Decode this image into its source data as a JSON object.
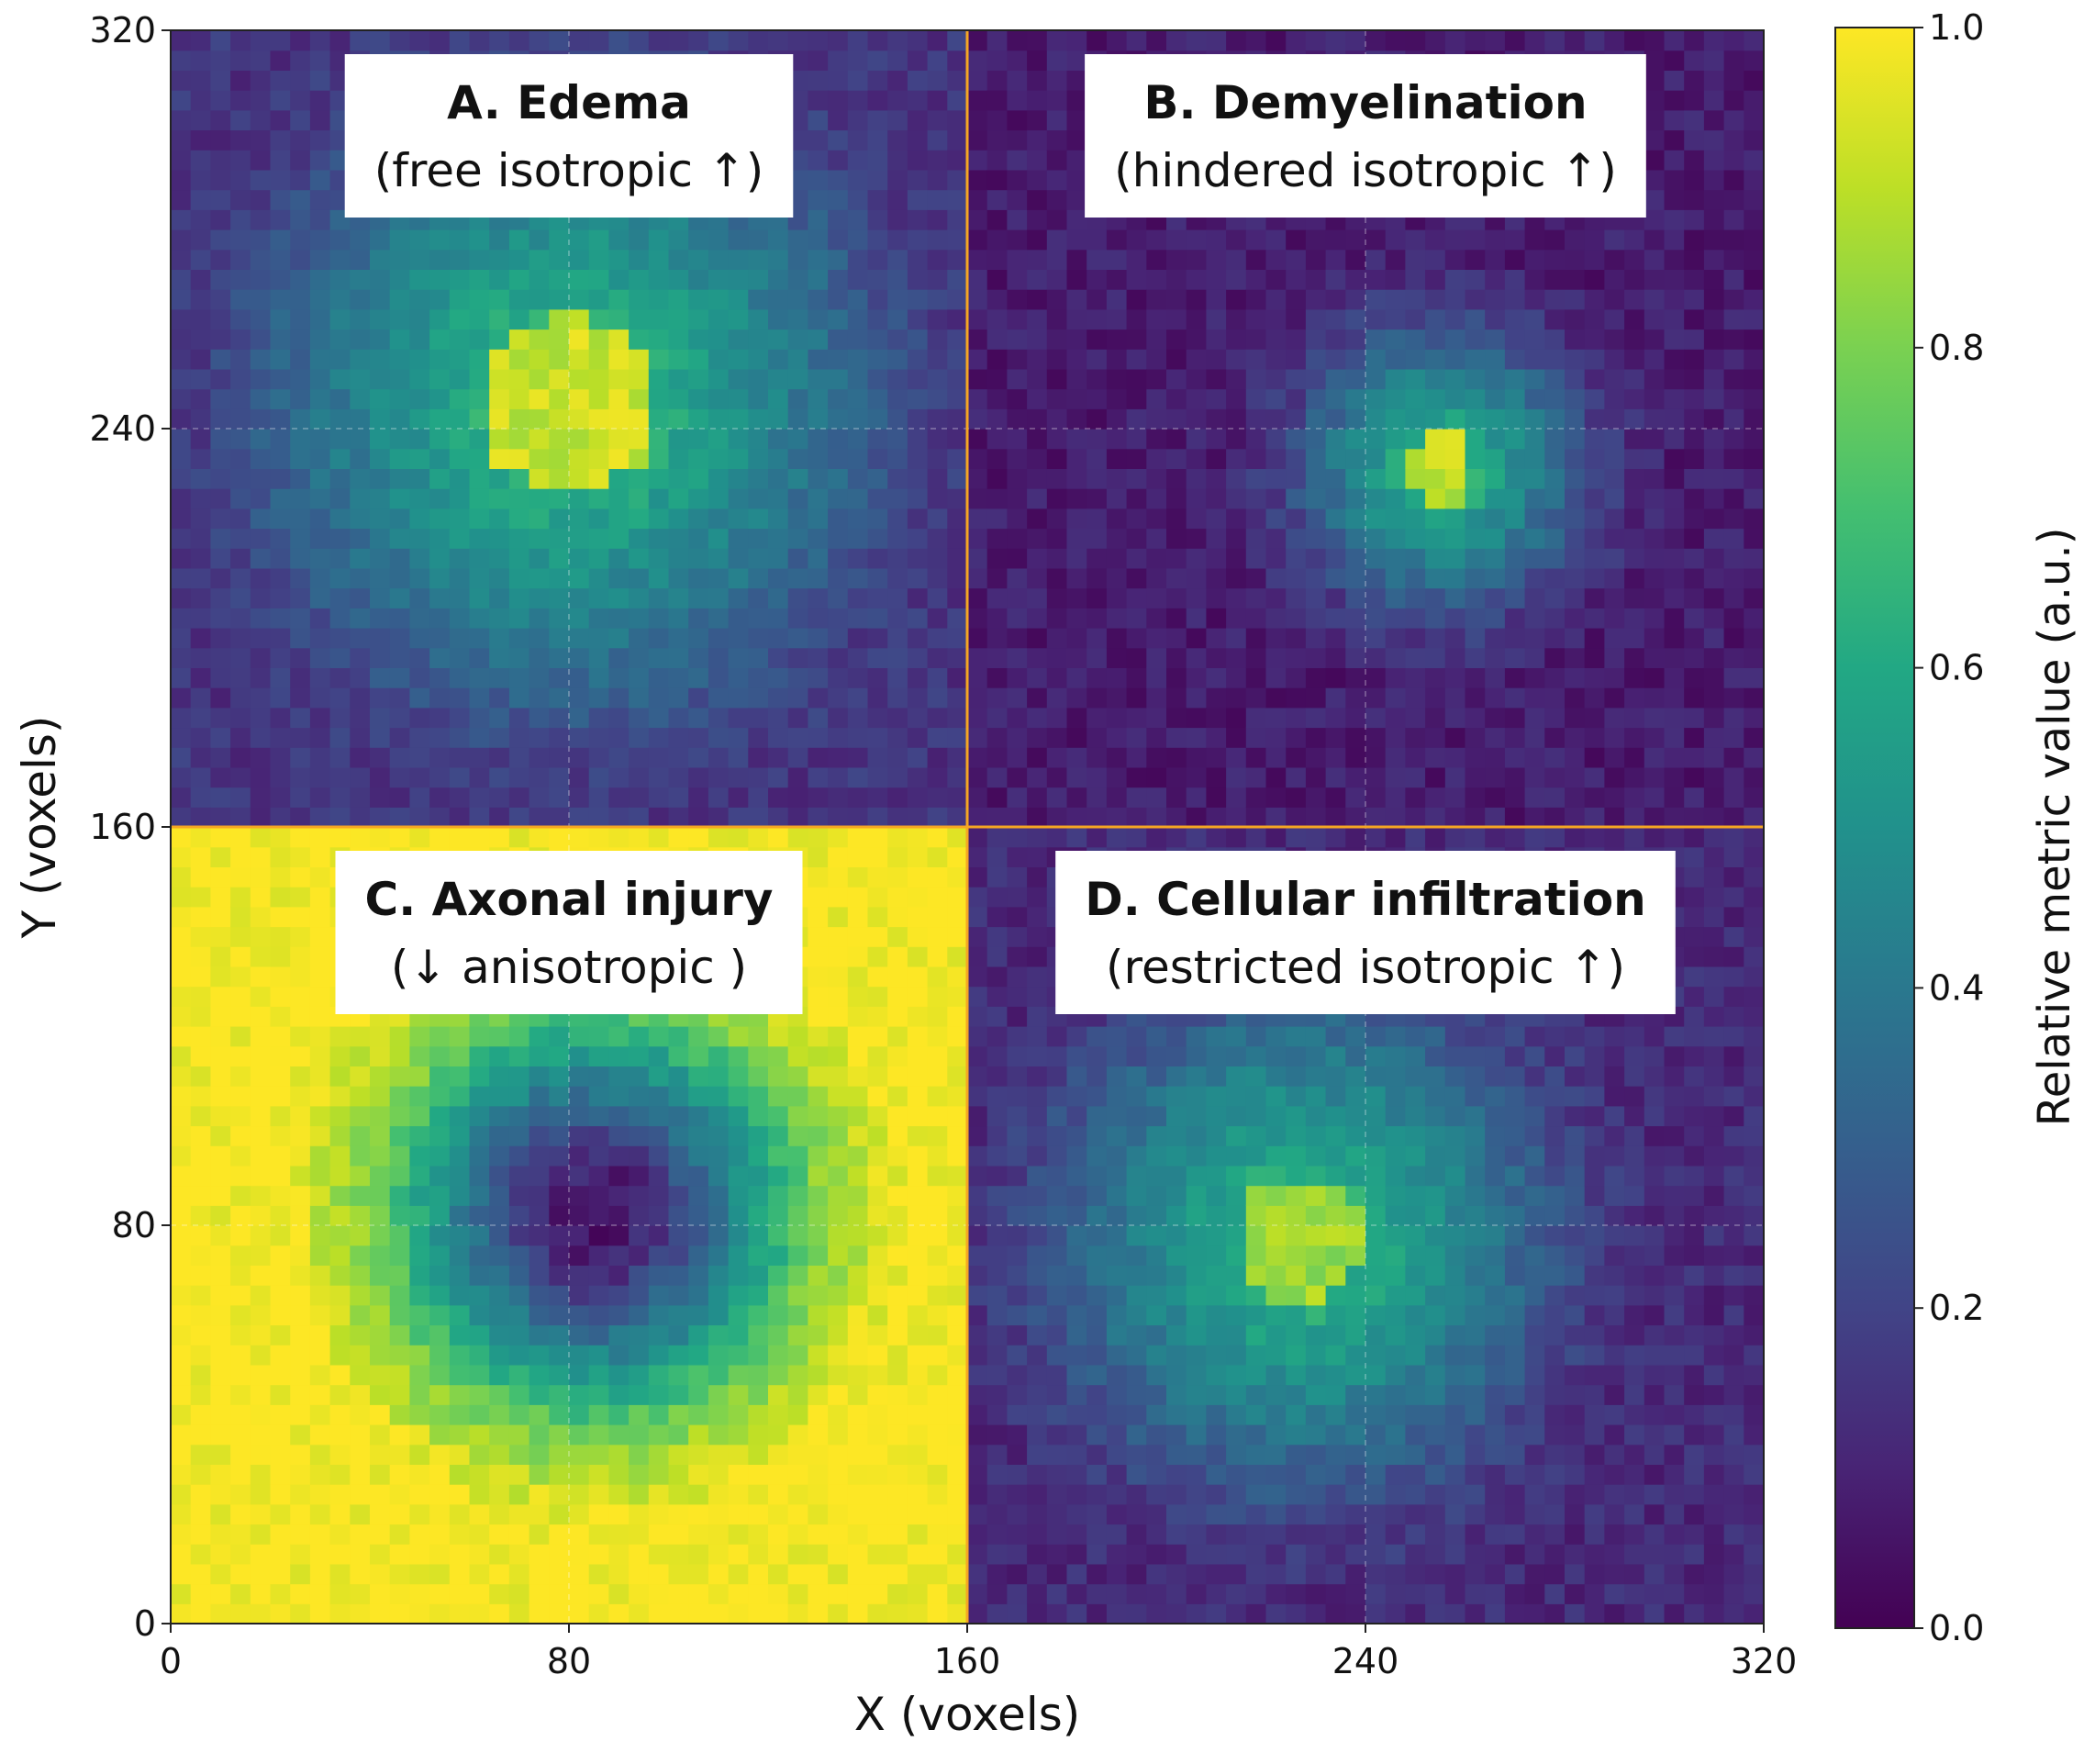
{
  "chart_data": {
    "type": "heatmap",
    "title": "",
    "xlabel": "X (voxels)",
    "ylabel": "Y (voxels)",
    "xlim": [
      0,
      320
    ],
    "ylim": [
      0,
      320
    ],
    "xticks": [
      0,
      80,
      160,
      240,
      320
    ],
    "yticks": [
      0,
      80,
      160,
      240,
      320
    ],
    "grid": true,
    "colormap": "viridis",
    "colorbar": {
      "label": "Relative metric value (a.u.)",
      "range": [
        0.0,
        1.0
      ],
      "ticks": [
        "0.0",
        "0.2",
        "0.4",
        "0.6",
        "0.8",
        "1.0"
      ]
    },
    "divider_color": "#f5a623",
    "panels": [
      {
        "id": "A",
        "title": "A. Edema",
        "subtitle": "(free isotropic ↑)",
        "x_range": [
          0,
          160
        ],
        "y_range": [
          160,
          320
        ],
        "background": 0.15,
        "pattern": "blob",
        "lesion_center": [
          80,
          245
        ],
        "core_radius": 18,
        "halo_radius": 75,
        "core_value": 0.92
      },
      {
        "id": "B",
        "title": "B. Demyelination",
        "subtitle": "(hindered isotropic ↑)",
        "x_range": [
          160,
          320
        ],
        "y_range": [
          160,
          320
        ],
        "background": 0.08,
        "pattern": "blob",
        "lesion_center": [
          255,
          232
        ],
        "core_radius": 7,
        "halo_radius": 33,
        "core_value": 0.9
      },
      {
        "id": "C",
        "title": "C. Axonal injury",
        "subtitle": "(↓ anisotropic )",
        "x_range": [
          0,
          160
        ],
        "y_range": [
          0,
          160
        ],
        "background": 1.0,
        "pattern": "ring",
        "lesion_center": [
          85,
          82
        ],
        "core_radius": 12,
        "halo_radius": 45,
        "core_value": 0.05
      },
      {
        "id": "D",
        "title": "D. Cellular infiltration",
        "subtitle": "(restricted isotropic ↑)",
        "x_range": [
          160,
          320
        ],
        "y_range": [
          0,
          160
        ],
        "background": 0.12,
        "pattern": "blob",
        "lesion_center": [
          227,
          77
        ],
        "core_radius": 13,
        "halo_radius": 60,
        "core_value": 0.85
      }
    ]
  }
}
